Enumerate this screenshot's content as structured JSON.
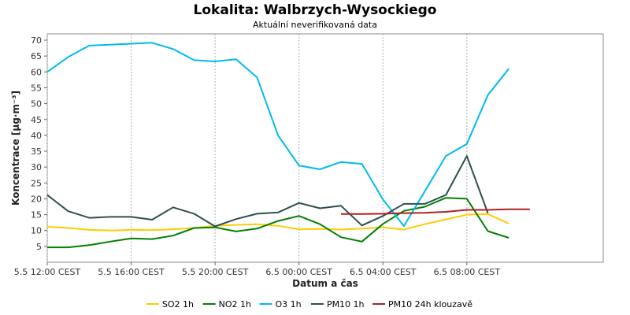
{
  "chart_data": {
    "type": "line",
    "title": "Lokalita: Walbrzych-Wysockiego",
    "subtitle": "Aktuální neverifikovaná data",
    "xlabel": "Datum a čas",
    "ylabel": "Koncentrace [µg·m⁻³]",
    "ylim": [
      0,
      72
    ],
    "yticks": [
      5,
      10,
      15,
      20,
      25,
      30,
      35,
      40,
      45,
      50,
      55,
      60,
      65,
      70
    ],
    "xlim": [
      12,
      38.5
    ],
    "xticks": [
      {
        "x": 12,
        "label": "5.5 12:00 CEST"
      },
      {
        "x": 16,
        "label": "5.5 16:00 CEST"
      },
      {
        "x": 20,
        "label": "5.5 20:00 CEST"
      },
      {
        "x": 24,
        "label": "6.5 00:00 CEST"
      },
      {
        "x": 28,
        "label": "6.5 04:00 CEST"
      },
      {
        "x": 32,
        "label": "6.5 08:00 CEST"
      }
    ],
    "grid": true,
    "legend_position": "bottom",
    "series": [
      {
        "name": "SO2 1h",
        "color": "#ffcc00",
        "x": [
          12,
          13,
          14,
          15,
          16,
          17,
          18,
          19,
          20,
          21,
          22,
          23,
          24,
          25,
          26,
          27,
          28,
          29,
          30,
          31,
          32,
          33,
          34
        ],
        "y": [
          11.2,
          10.8,
          10.2,
          10.0,
          10.2,
          10.1,
          10.4,
          10.8,
          11.5,
          11.8,
          12.0,
          11.5,
          10.4,
          10.5,
          10.3,
          10.6,
          11.0,
          10.3,
          12.0,
          13.5,
          15.0,
          15.2,
          12.2
        ]
      },
      {
        "name": "NO2 1h",
        "color": "#008000",
        "x": [
          12,
          13,
          14,
          15,
          16,
          17,
          18,
          19,
          20,
          21,
          22,
          23,
          24,
          25,
          26,
          27,
          28,
          29,
          30,
          31,
          32,
          33,
          34
        ],
        "y": [
          4.7,
          4.7,
          5.4,
          6.5,
          7.5,
          7.3,
          8.4,
          10.8,
          11.0,
          9.7,
          10.6,
          13.0,
          14.6,
          12.0,
          7.9,
          6.5,
          12.1,
          16.2,
          17.5,
          20.3,
          20.0,
          9.8,
          7.7
        ]
      },
      {
        "name": "O3 1h",
        "color": "#00bbee",
        "x": [
          12,
          13,
          14,
          15,
          16,
          17,
          18,
          19,
          20,
          21,
          22,
          23,
          24,
          25,
          26,
          27,
          28,
          29,
          30,
          31,
          32,
          33,
          34
        ],
        "y": [
          60.0,
          64.7,
          68.3,
          68.6,
          68.9,
          69.2,
          67.2,
          63.7,
          63.3,
          64.0,
          58.3,
          40.0,
          30.5,
          29.3,
          31.6,
          31.0,
          19.8,
          11.4,
          22.4,
          33.5,
          37.3,
          52.7,
          61.0
        ]
      },
      {
        "name": "PM10 1h",
        "color": "#2f4f4f",
        "x": [
          12,
          13,
          14,
          15,
          16,
          17,
          18,
          19,
          20,
          21,
          22,
          23,
          24,
          25,
          26,
          27,
          28,
          29,
          30,
          31,
          32,
          33
        ],
        "y": [
          21.2,
          16.1,
          14.0,
          14.3,
          14.3,
          13.4,
          17.3,
          15.3,
          11.3,
          13.6,
          15.3,
          15.7,
          18.7,
          17.0,
          17.8,
          11.6,
          14.6,
          18.4,
          18.4,
          21.2,
          33.5,
          15.5
        ]
      },
      {
        "name": "PM10 24h klouzavě",
        "color": "#aa2222",
        "x": [
          26,
          27,
          28,
          29,
          30,
          31,
          32,
          33,
          34,
          35
        ],
        "y": [
          15.2,
          15.2,
          15.3,
          15.5,
          15.6,
          15.9,
          16.5,
          16.5,
          16.7,
          16.7
        ]
      }
    ]
  }
}
